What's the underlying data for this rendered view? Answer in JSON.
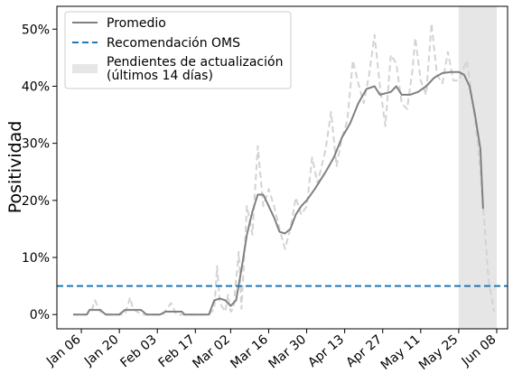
{
  "chart_data": {
    "type": "line",
    "ylabel": "Positividad",
    "y_unit": "%",
    "ylim": [
      -2.5,
      54
    ],
    "y_ticks": [
      0,
      10,
      20,
      30,
      40,
      50
    ],
    "y_tick_labels": [
      "0%",
      "10%",
      "20%",
      "30%",
      "40%",
      "50%"
    ],
    "x_range": [
      "2020-12-28",
      "2021-06-12"
    ],
    "x_ticks": [
      "2021-01-06",
      "2021-01-20",
      "2021-02-03",
      "2021-02-17",
      "2021-03-02",
      "2021-03-16",
      "2021-03-30",
      "2021-04-13",
      "2021-04-27",
      "2021-05-11",
      "2021-05-25",
      "2021-06-08"
    ],
    "x_tick_labels": [
      "Jan 06",
      "Jan 20",
      "Feb 03",
      "Feb 17",
      "Mar 02",
      "Mar 16",
      "Mar 30",
      "Apr 13",
      "Apr 27",
      "May 11",
      "May 25",
      "Jun 08"
    ],
    "grid": false,
    "legend_position": "top-left",
    "legend": {
      "average": "Promedio",
      "who": "Recomendación OMS",
      "pending_line1": "Pendientes de actualización",
      "pending_line2": "(últimos 14 días)"
    },
    "who_value": 5,
    "pending_span": [
      "2021-05-25",
      "2021-06-08"
    ],
    "colors": {
      "average": "#808080",
      "daily": "#d3d3d3",
      "who": "#1f77b4",
      "pending": "#e6e6e6"
    },
    "series": [
      {
        "name": "Promedio",
        "style": "solid",
        "points": [
          [
            "2021-01-03",
            0
          ],
          [
            "2021-01-08",
            0
          ],
          [
            "2021-01-09",
            0.8
          ],
          [
            "2021-01-13",
            0.8
          ],
          [
            "2021-01-15",
            0
          ],
          [
            "2021-01-20",
            0
          ],
          [
            "2021-01-22",
            0.8
          ],
          [
            "2021-01-28",
            0.8
          ],
          [
            "2021-01-30",
            0
          ],
          [
            "2021-02-04",
            0
          ],
          [
            "2021-02-06",
            0.5
          ],
          [
            "2021-02-12",
            0.5
          ],
          [
            "2021-02-13",
            0
          ],
          [
            "2021-02-22",
            0
          ],
          [
            "2021-02-24",
            2.5
          ],
          [
            "2021-02-26",
            2.8
          ],
          [
            "2021-02-28",
            2.5
          ],
          [
            "2021-03-02",
            1.5
          ],
          [
            "2021-03-04",
            2.5
          ],
          [
            "2021-03-06",
            8
          ],
          [
            "2021-03-08",
            14
          ],
          [
            "2021-03-10",
            18
          ],
          [
            "2021-03-12",
            21
          ],
          [
            "2021-03-14",
            21
          ],
          [
            "2021-03-16",
            19
          ],
          [
            "2021-03-18",
            17
          ],
          [
            "2021-03-20",
            14.5
          ],
          [
            "2021-03-22",
            14.2
          ],
          [
            "2021-03-24",
            15
          ],
          [
            "2021-03-26",
            17.5
          ],
          [
            "2021-03-28",
            19
          ],
          [
            "2021-03-30",
            20
          ],
          [
            "2021-04-02",
            22
          ],
          [
            "2021-04-06",
            25
          ],
          [
            "2021-04-09",
            27.5
          ],
          [
            "2021-04-12",
            31
          ],
          [
            "2021-04-15",
            33.5
          ],
          [
            "2021-04-18",
            37
          ],
          [
            "2021-04-21",
            39.5
          ],
          [
            "2021-04-24",
            40
          ],
          [
            "2021-04-26",
            38.5
          ],
          [
            "2021-04-30",
            39
          ],
          [
            "2021-05-02",
            40
          ],
          [
            "2021-05-04",
            38.5
          ],
          [
            "2021-05-07",
            38.5
          ],
          [
            "2021-05-10",
            39
          ],
          [
            "2021-05-13",
            40
          ],
          [
            "2021-05-16",
            41.5
          ],
          [
            "2021-05-19",
            42.3
          ],
          [
            "2021-05-22",
            42.5
          ],
          [
            "2021-05-25",
            42.5
          ],
          [
            "2021-05-27",
            42
          ],
          [
            "2021-05-29",
            40
          ],
          [
            "2021-05-31",
            35
          ],
          [
            "2021-06-02",
            29
          ],
          [
            "2021-06-03",
            18.5
          ]
        ]
      },
      {
        "style": "dashed",
        "points": [
          [
            "2021-01-03",
            0
          ],
          [
            "2021-01-08",
            0
          ],
          [
            "2021-01-10",
            1
          ],
          [
            "2021-01-11",
            2.5
          ],
          [
            "2021-01-13",
            0.5
          ],
          [
            "2021-01-16",
            0
          ],
          [
            "2021-01-22",
            0
          ],
          [
            "2021-01-24",
            3
          ],
          [
            "2021-01-25",
            1
          ],
          [
            "2021-01-28",
            0
          ],
          [
            "2021-02-05",
            0
          ],
          [
            "2021-02-08",
            2
          ],
          [
            "2021-02-10",
            0
          ],
          [
            "2021-02-22",
            0
          ],
          [
            "2021-02-24",
            1
          ],
          [
            "2021-02-25",
            8.5
          ],
          [
            "2021-02-26",
            2
          ],
          [
            "2021-02-28",
            0.5
          ],
          [
            "2021-03-01",
            3.5
          ],
          [
            "2021-03-02",
            0.5
          ],
          [
            "2021-03-03",
            1
          ],
          [
            "2021-03-05",
            11
          ],
          [
            "2021-03-06",
            1
          ],
          [
            "2021-03-08",
            19
          ],
          [
            "2021-03-10",
            14
          ],
          [
            "2021-03-12",
            29.5
          ],
          [
            "2021-03-14",
            19
          ],
          [
            "2021-03-16",
            22
          ],
          [
            "2021-03-18",
            19
          ],
          [
            "2021-03-20",
            15
          ],
          [
            "2021-03-22",
            11.5
          ],
          [
            "2021-03-24",
            15
          ],
          [
            "2021-03-26",
            20.5
          ],
          [
            "2021-03-28",
            17.5
          ],
          [
            "2021-03-30",
            19
          ],
          [
            "2021-04-01",
            27.5
          ],
          [
            "2021-04-03",
            23
          ],
          [
            "2021-04-06",
            29
          ],
          [
            "2021-04-08",
            35.5
          ],
          [
            "2021-04-10",
            26
          ],
          [
            "2021-04-12",
            31
          ],
          [
            "2021-04-14",
            34
          ],
          [
            "2021-04-16",
            44.5
          ],
          [
            "2021-04-18",
            40.5
          ],
          [
            "2021-04-20",
            37
          ],
          [
            "2021-04-22",
            42
          ],
          [
            "2021-04-24",
            49
          ],
          [
            "2021-04-26",
            40
          ],
          [
            "2021-04-28",
            33
          ],
          [
            "2021-04-30",
            45.5
          ],
          [
            "2021-05-02",
            44
          ],
          [
            "2021-05-04",
            37
          ],
          [
            "2021-05-06",
            36
          ],
          [
            "2021-05-08",
            43
          ],
          [
            "2021-05-09",
            48.5
          ],
          [
            "2021-05-11",
            41
          ],
          [
            "2021-05-13",
            38.5
          ],
          [
            "2021-05-15",
            51
          ],
          [
            "2021-05-17",
            42
          ],
          [
            "2021-05-19",
            40.5
          ],
          [
            "2021-05-21",
            46
          ],
          [
            "2021-05-23",
            41
          ],
          [
            "2021-05-25",
            41
          ],
          [
            "2021-05-28",
            44.5
          ],
          [
            "2021-05-30",
            38
          ],
          [
            "2021-06-01",
            30
          ],
          [
            "2021-06-03",
            19
          ],
          [
            "2021-06-05",
            6
          ],
          [
            "2021-06-07",
            0.5
          ]
        ]
      }
    ]
  }
}
